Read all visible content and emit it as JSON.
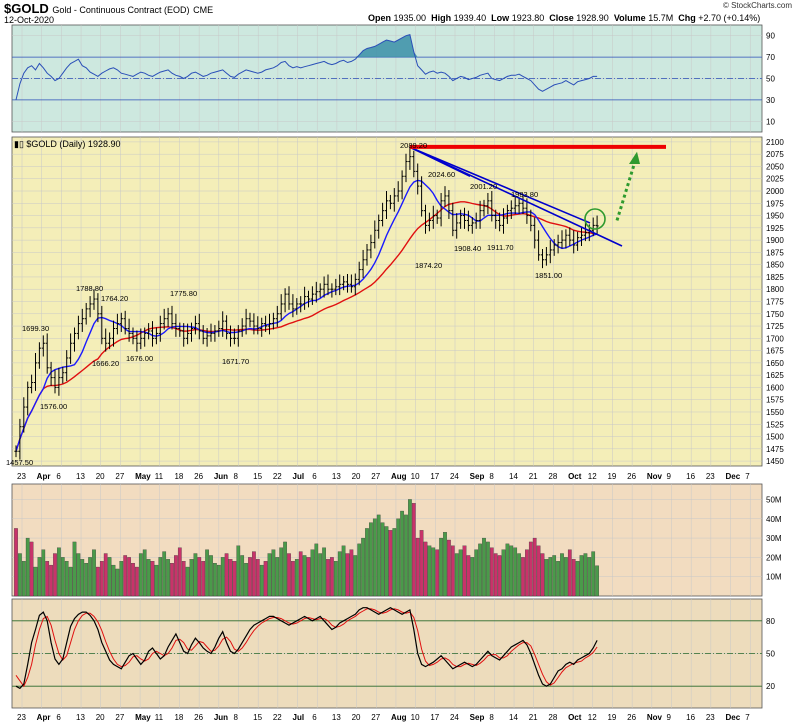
{
  "header": {
    "symbol": "$GOLD",
    "description": "Gold - Continuous Contract (EOD)",
    "exchange": "CME",
    "date": "12-Oct-2020",
    "open_label": "Open",
    "open": "1935.00",
    "high_label": "High",
    "high": "1939.40",
    "low_label": "Low",
    "low": "1923.80",
    "close_label": "Close",
    "close": "1928.90",
    "volume_label": "Volume",
    "volume": "15.7M",
    "chg_label": "Chg",
    "chg": "+2.70 (+0.14%)",
    "credit": "© StockCharts.com",
    "legend": "$GOLD (Daily) 1928.90"
  },
  "colors": {
    "price_bg": "#f4eeb8",
    "rsi_bg": "#cde8df",
    "volume_bg": "#f2dcc0",
    "stoch_bg": "#eddcbc",
    "ma_short": "#1a1aff",
    "ma_long": "#e01010",
    "trendline": "#0000cc",
    "resistance": "#ee0000",
    "arrow": "#2e9a2e",
    "circle": "#2e9a2e",
    "vol_up": "#4a9a4a",
    "vol_down": "#c8336a",
    "rsi_line": "#2a4fb8",
    "stoch_k": "#000000",
    "stoch_d": "#e01010"
  },
  "chart_data": {
    "type": "candlestick",
    "x_axis": {
      "months": [
        "Apr",
        "May",
        "Jun",
        "Jul",
        "Aug",
        "Sep",
        "Oct",
        "Nov",
        "Dec"
      ],
      "tick_labels": [
        "23",
        "Apr",
        "6",
        "13",
        "20",
        "27",
        "May",
        "11",
        "18",
        "26",
        "Jun",
        "8",
        "15",
        "22",
        "Jul",
        "6",
        "13",
        "20",
        "27",
        "Aug",
        "10",
        "17",
        "24",
        "Sep",
        "8",
        "14",
        "21",
        "28",
        "Oct",
        "12",
        "19",
        "26",
        "Nov",
        "9",
        "16",
        "23",
        "Dec",
        "7"
      ]
    },
    "price_panel": {
      "ylim": [
        1440,
        2110
      ],
      "yticks": [
        1450,
        1475,
        1500,
        1525,
        1550,
        1575,
        1600,
        1625,
        1650,
        1675,
        1700,
        1725,
        1750,
        1775,
        1800,
        1825,
        1850,
        1875,
        1900,
        1925,
        1950,
        1975,
        2000,
        2025,
        2050,
        2075,
        2100
      ],
      "labeled_points": [
        {
          "label": "1457.50",
          "value": 1457.5
        },
        {
          "label": "1576.00",
          "value": 1576.0
        },
        {
          "label": "1699.30",
          "value": 1699.3
        },
        {
          "label": "1788.80",
          "value": 1788.8
        },
        {
          "label": "1666.20",
          "value": 1666.2
        },
        {
          "label": "1764.20",
          "value": 1764.2
        },
        {
          "label": "1676.00",
          "value": 1676.0
        },
        {
          "label": "1775.80",
          "value": 1775.8
        },
        {
          "label": "1671.70",
          "value": 1671.7
        },
        {
          "label": "2089.20",
          "value": 2089.2
        },
        {
          "label": "1874.20",
          "value": 1874.2
        },
        {
          "label": "2024.60",
          "value": 2024.6
        },
        {
          "label": "1908.40",
          "value": 1908.4
        },
        {
          "label": "2001.20",
          "value": 2001.2
        },
        {
          "label": "1911.70",
          "value": 1911.7
        },
        {
          "label": "1983.80",
          "value": 1983.8
        },
        {
          "label": "1851.00",
          "value": 1851.0
        }
      ],
      "resistance_level": 2090,
      "close": [
        1470,
        1520,
        1560,
        1600,
        1610,
        1650,
        1680,
        1690,
        1640,
        1620,
        1600,
        1620,
        1630,
        1660,
        1690,
        1710,
        1730,
        1740,
        1760,
        1770,
        1780,
        1750,
        1700,
        1690,
        1700,
        1720,
        1730,
        1740,
        1720,
        1710,
        1700,
        1690,
        1700,
        1710,
        1715,
        1700,
        1710,
        1730,
        1740,
        1750,
        1730,
        1720,
        1715,
        1700,
        1710,
        1720,
        1730,
        1715,
        1700,
        1705,
        1710,
        1715,
        1720,
        1735,
        1710,
        1700,
        1700,
        1715,
        1725,
        1740,
        1735,
        1725,
        1720,
        1730,
        1725,
        1730,
        1740,
        1750,
        1770,
        1790,
        1770,
        1760,
        1770,
        1770,
        1785,
        1780,
        1790,
        1795,
        1800,
        1810,
        1800,
        1800,
        1805,
        1810,
        1815,
        1810,
        1805,
        1820,
        1840,
        1860,
        1880,
        1895,
        1920,
        1940,
        1960,
        1980,
        1975,
        1990,
        2000,
        2030,
        2060,
        2070,
        2040,
        2010,
        1960,
        1930,
        1940,
        1950,
        1945,
        1980,
        1990,
        1960,
        1920,
        1935,
        1950,
        1940,
        1930,
        1935,
        1940,
        1960,
        1970,
        1980,
        1950,
        1940,
        1930,
        1945,
        1960,
        1965,
        1970,
        1975,
        1965,
        1950,
        1930,
        1900,
        1870,
        1860,
        1870,
        1880,
        1890,
        1895,
        1900,
        1910,
        1900,
        1890,
        1905,
        1910,
        1915,
        1920,
        1930,
        1928.9
      ]
    },
    "rsi_panel": {
      "ylim": [
        0,
        100
      ],
      "yticks": [
        10,
        30,
        50,
        70,
        90
      ],
      "levels": [
        30,
        50,
        70
      ],
      "values": [
        30,
        45,
        55,
        60,
        62,
        58,
        64,
        60,
        55,
        52,
        48,
        50,
        55,
        60,
        64,
        66,
        68,
        62,
        60,
        56,
        54,
        52,
        55,
        57,
        59,
        60,
        58,
        55,
        54,
        53,
        52,
        54,
        56,
        55,
        53,
        52,
        54,
        56,
        57,
        58,
        55,
        53,
        52,
        50,
        52,
        55,
        56,
        54,
        52,
        53,
        55,
        56,
        57,
        58,
        55,
        52,
        51,
        54,
        56,
        58,
        57,
        56,
        55,
        56,
        58,
        59,
        60,
        62,
        65,
        66,
        62,
        60,
        61,
        60,
        61,
        62,
        63,
        64,
        65,
        66,
        64,
        63,
        64,
        66,
        67,
        65,
        66,
        68,
        72,
        76,
        78,
        79,
        80,
        82,
        84,
        86,
        85,
        84,
        86,
        88,
        90,
        91,
        75,
        62,
        58,
        54,
        56,
        57,
        55,
        56,
        55,
        52,
        48,
        50,
        52,
        51,
        49,
        50,
        51,
        53,
        54,
        55,
        50,
        49,
        48,
        50,
        52,
        53,
        53,
        54,
        52,
        50,
        48,
        44,
        40,
        38,
        40,
        42,
        44,
        45,
        46,
        48,
        46,
        44,
        47,
        48,
        49,
        50,
        52,
        52
      ]
    },
    "volume_panel": {
      "ylim": [
        0,
        58
      ],
      "unit": "M",
      "ytick_labels": [
        "10M",
        "20M",
        "30M",
        "40M",
        "50M"
      ],
      "yticks": [
        10,
        20,
        30,
        40,
        50
      ],
      "values": [
        35,
        22,
        18,
        30,
        28,
        15,
        20,
        24,
        18,
        16,
        22,
        25,
        20,
        18,
        15,
        28,
        22,
        19,
        17,
        20,
        24,
        15,
        18,
        22,
        20,
        16,
        14,
        18,
        21,
        20,
        17,
        15,
        22,
        24,
        19,
        18,
        16,
        20,
        23,
        19,
        17,
        21,
        25,
        18,
        15,
        19,
        22,
        20,
        18,
        24,
        21,
        17,
        16,
        20,
        22,
        19,
        18,
        26,
        21,
        17,
        20,
        23,
        19,
        16,
        18,
        22,
        24,
        20,
        25,
        28,
        22,
        18,
        19,
        23,
        21,
        20,
        24,
        27,
        22,
        25,
        19,
        20,
        18,
        23,
        26,
        22,
        24,
        21,
        27,
        30,
        35,
        38,
        40,
        42,
        38,
        36,
        34,
        35,
        40,
        44,
        42,
        50,
        48,
        30,
        34,
        28,
        26,
        25,
        24,
        30,
        33,
        29,
        26,
        22,
        24,
        26,
        21,
        20,
        24,
        27,
        30,
        28,
        25,
        22,
        21,
        24,
        27,
        26,
        25,
        22,
        20,
        24,
        28,
        30,
        26,
        22,
        19,
        20,
        21,
        18,
        22,
        20,
        24,
        19,
        18,
        21,
        22,
        20,
        23,
        15.7
      ],
      "up": [
        false,
        true,
        true,
        true,
        false,
        true,
        true,
        true,
        false,
        false,
        false,
        true,
        true,
        true,
        true,
        true,
        true,
        true,
        true,
        true,
        true,
        false,
        false,
        false,
        true,
        true,
        true,
        true,
        false,
        false,
        false,
        false,
        true,
        true,
        true,
        false,
        true,
        true,
        true,
        true,
        false,
        false,
        false,
        false,
        true,
        true,
        true,
        false,
        false,
        true,
        true,
        true,
        true,
        true,
        false,
        false,
        false,
        true,
        true,
        true,
        false,
        false,
        false,
        true,
        false,
        true,
        true,
        true,
        true,
        true,
        false,
        false,
        true,
        false,
        true,
        false,
        true,
        true,
        true,
        true,
        false,
        false,
        true,
        true,
        true,
        false,
        false,
        true,
        true,
        true,
        true,
        true,
        true,
        true,
        true,
        true,
        false,
        true,
        true,
        true,
        true,
        true,
        false,
        false,
        false,
        false,
        true,
        true,
        false,
        true,
        true,
        false,
        false,
        true,
        true,
        false,
        false,
        true,
        true,
        true,
        true,
        true,
        false,
        false,
        false,
        true,
        true,
        true,
        true,
        true,
        false,
        false,
        false,
        false,
        false,
        false,
        true,
        true,
        true,
        true,
        true,
        true,
        false,
        false,
        true,
        true,
        true,
        true,
        true,
        true
      ]
    },
    "stoch_panel": {
      "ylim": [
        0,
        100
      ],
      "yticks": [
        20,
        50,
        80
      ],
      "levels": [
        20,
        50,
        80
      ],
      "k": [
        20,
        18,
        22,
        40,
        60,
        72,
        85,
        88,
        80,
        60,
        45,
        40,
        45,
        60,
        75,
        82,
        86,
        88,
        88,
        85,
        80,
        72,
        60,
        52,
        44,
        40,
        38,
        36,
        42,
        48,
        50,
        45,
        40,
        44,
        52,
        55,
        50,
        45,
        48,
        56,
        62,
        68,
        60,
        52,
        50,
        58,
        64,
        60,
        55,
        52,
        50,
        56,
        64,
        70,
        60,
        52,
        50,
        54,
        60,
        66,
        72,
        76,
        78,
        80,
        82,
        84,
        84,
        82,
        80,
        78,
        76,
        78,
        80,
        82,
        84,
        82,
        80,
        82,
        84,
        80,
        76,
        72,
        74,
        78,
        80,
        82,
        84,
        86,
        90,
        92,
        92,
        90,
        88,
        86,
        88,
        90,
        92,
        90,
        88,
        86,
        88,
        90,
        72,
        50,
        40,
        38,
        40,
        42,
        45,
        48,
        44,
        40,
        36,
        38,
        40,
        42,
        40,
        38,
        40,
        44,
        48,
        52,
        48,
        46,
        44,
        48,
        52,
        56,
        58,
        60,
        62,
        58,
        50,
        40,
        30,
        22,
        20,
        22,
        28,
        34,
        36,
        40,
        42,
        40,
        44,
        46,
        48,
        50,
        55,
        62
      ],
      "d": [
        30,
        25,
        20,
        28,
        40,
        58,
        72,
        82,
        84,
        76,
        62,
        50,
        44,
        48,
        60,
        72,
        80,
        85,
        87,
        87,
        84,
        79,
        71,
        61,
        52,
        45,
        40,
        38,
        39,
        42,
        47,
        48,
        45,
        43,
        45,
        50,
        52,
        50,
        48,
        50,
        55,
        62,
        63,
        60,
        54,
        53,
        57,
        61,
        60,
        56,
        52,
        53,
        57,
        63,
        65,
        61,
        54,
        52,
        55,
        60,
        66,
        71,
        75,
        78,
        80,
        82,
        83,
        83,
        82,
        80,
        78,
        77,
        78,
        80,
        82,
        83,
        82,
        81,
        82,
        82,
        80,
        76,
        74,
        75,
        77,
        80,
        82,
        84,
        87,
        89,
        91,
        91,
        90,
        88,
        87,
        88,
        90,
        91,
        90,
        88,
        87,
        88,
        83,
        71,
        54,
        43,
        39,
        40,
        42,
        45,
        46,
        44,
        40,
        38,
        38,
        40,
        41,
        40,
        39,
        41,
        44,
        48,
        49,
        49,
        46,
        46,
        48,
        52,
        55,
        58,
        60,
        60,
        57,
        49,
        40,
        31,
        24,
        21,
        23,
        28,
        33,
        37,
        39,
        41,
        42,
        43,
        46,
        48,
        51,
        56
      ]
    }
  }
}
